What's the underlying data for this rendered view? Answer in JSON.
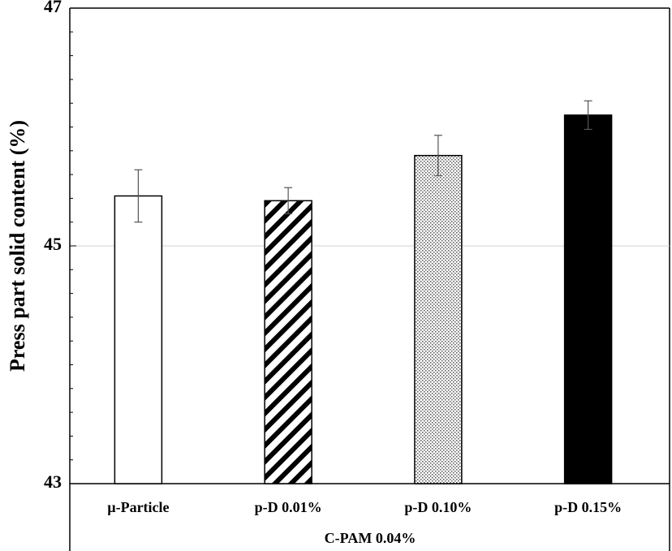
{
  "chart_data": {
    "type": "bar",
    "ylabel": "Press part solid content (%)",
    "group_label": "C-PAM 0.04%",
    "ylim": [
      43,
      47
    ],
    "yticks": [
      43,
      45,
      47
    ],
    "grid": "horizontal at 45",
    "categories": [
      "µ-Particle",
      "p-D 0.01%",
      "p-D 0.10%",
      "p-D 0.15%"
    ],
    "values": [
      45.42,
      45.38,
      45.76,
      46.1
    ],
    "errors": [
      0.22,
      0.11,
      0.17,
      0.12
    ],
    "fills": [
      "white",
      "diagonal-stripes",
      "dots",
      "black"
    ]
  }
}
